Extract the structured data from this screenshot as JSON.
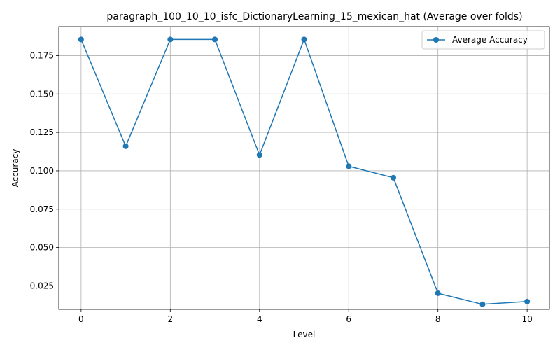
{
  "chart_data": {
    "type": "line",
    "title": "paragraph_100_10_10_isfc_DictionaryLearning_15_mexican_hat (Average over folds)",
    "xlabel": "Level",
    "ylabel": "Accuracy",
    "xlim": [
      -0.5,
      10.5
    ],
    "ylim": [
      0.0097,
      0.1939
    ],
    "xticks": [
      0,
      2,
      4,
      6,
      8,
      10
    ],
    "yticks": [
      0.025,
      0.05,
      0.075,
      0.1,
      0.125,
      0.15,
      0.175
    ],
    "ytick_labels": [
      "0.025",
      "0.050",
      "0.075",
      "0.100",
      "0.125",
      "0.150",
      "0.175"
    ],
    "grid": true,
    "legend_position": "top-right",
    "series": [
      {
        "name": "Average Accuracy",
        "color": "#1f77b4",
        "marker": "circle",
        "x": [
          0,
          1,
          2,
          3,
          4,
          5,
          6,
          7,
          8,
          9,
          10
        ],
        "values": [
          0.1855,
          0.116,
          0.1855,
          0.1855,
          0.1103,
          0.1855,
          0.103,
          0.0955,
          0.0202,
          0.013,
          0.0148
        ]
      }
    ]
  }
}
